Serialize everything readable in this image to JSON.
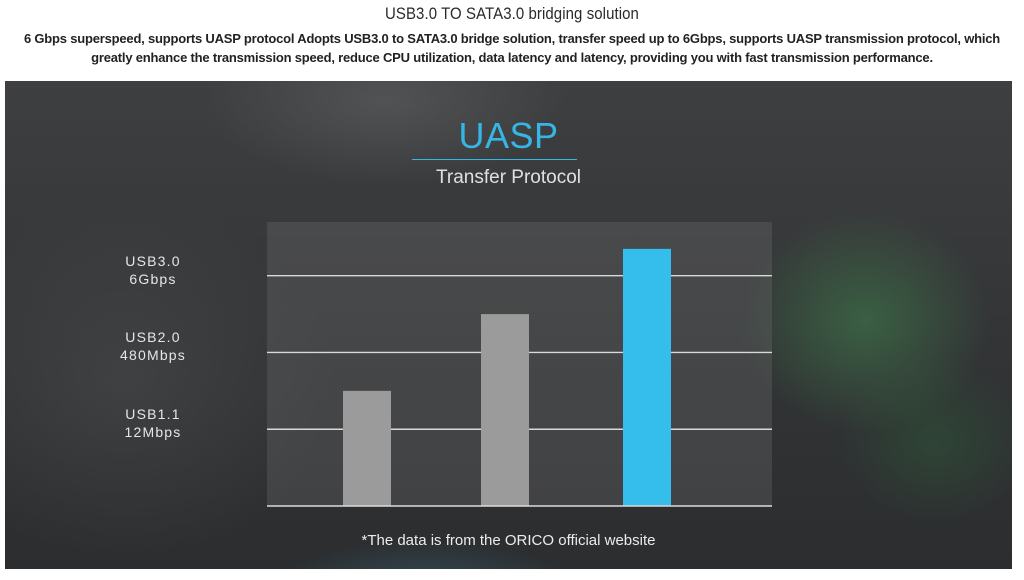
{
  "header": {
    "title": "USB3.0 TO SATA3.0 bridging solution",
    "description": "6 Gbps superspeed, supports UASP protocol Adopts USB3.0 to SATA3.0 bridge solution, transfer speed up to 6Gbps, supports UASP transmission protocol, which greatly enhance the transmission speed, reduce CPU utilization, data latency and latency, providing you with fast transmission performance."
  },
  "banner": {
    "title": "UASP",
    "subtitle": "Transfer Protocol",
    "footnote": "*The data is from the ORICO official website"
  },
  "colors": {
    "accent": "#35b6e6",
    "bar_gray": "#9b9b9b",
    "bar_highlight": "#35bdeb"
  },
  "chart_data": {
    "type": "bar",
    "y_tick_labels": [
      {
        "line1": "USB1.1",
        "line2": "12Mbps",
        "level": 1
      },
      {
        "line1": "USB2.0",
        "line2": "480Mbps",
        "level": 2
      },
      {
        "line1": "USB3.0",
        "line2": "6Gbps",
        "level": 3
      }
    ],
    "series": [
      {
        "values": [
          1.5,
          2.5,
          3.35
        ]
      }
    ],
    "highlight_index": 2,
    "ylim": [
      0,
      3.7
    ],
    "grid": true
  }
}
